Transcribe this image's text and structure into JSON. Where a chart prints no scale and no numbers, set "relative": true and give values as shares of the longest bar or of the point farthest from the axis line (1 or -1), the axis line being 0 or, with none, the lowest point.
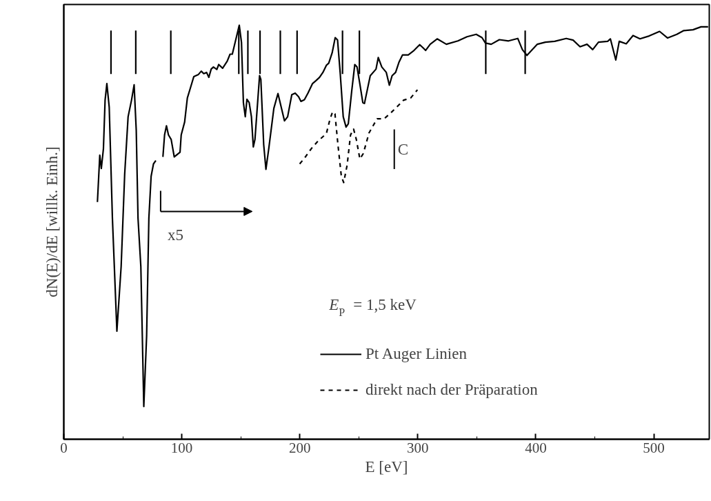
{
  "chart_data": {
    "type": "line",
    "relative": true,
    "xlabel": "E [eV]",
    "ylabel": "dN(E)/dE [willk. Einh.]",
    "legend_title": "E$_{P}$ = 1,5 keV",
    "xlim": [
      0,
      547
    ],
    "xticks": [
      0,
      100,
      200,
      300,
      400,
      500
    ],
    "grid": false,
    "legend": "bottom right",
    "series": [
      {
        "name": "Pt Auger Linien",
        "color": "#000000",
        "line_style": "solid",
        "x": [
          28.5,
          30.5,
          31.8,
          33.6,
          35,
          36.5,
          38.5,
          41.2,
          45,
          48.6,
          51.6,
          54.5,
          57.4,
          59.6,
          61.4,
          62.9,
          65.3,
          67.8,
          70.2,
          72.1,
          74,
          76,
          78,
          81,
          84,
          85.4,
          87,
          88.7,
          91,
          93.6,
          98.5,
          99.5,
          102.4,
          104.7,
          108.3,
          110.2,
          114.1,
          116.5,
          118.6,
          121,
          122.9,
          124.9,
          126.8,
          129.7,
          131.3,
          134.6,
          138.5,
          140.9,
          142.8,
          145.4,
          148.7,
          150.6,
          152.2,
          153.8,
          155.2,
          157.1,
          159,
          160.6,
          162,
          165.9,
          167,
          169.4,
          171.3,
          173.7,
          178,
          181.5,
          187,
          189.7,
          193.2,
          196.1,
          199,
          201,
          203.9,
          206.9,
          210.8,
          213.7,
          216.7,
          219.6,
          222.5,
          224.5,
          227.4,
          230,
          232,
          234.2,
          236.8,
          239.2,
          241.1,
          244,
          246.6,
          248.5,
          250.9,
          253.4,
          254.8,
          259.7,
          264.6,
          266.5,
          269.5,
          273.3,
          275.9,
          278.2,
          281.2,
          284.1,
          287,
          291.9,
          296.8,
          301.6,
          304.6,
          306.6,
          310.5,
          316.4,
          324.2,
          334,
          341.7,
          349.5,
          354.4,
          357.3,
          362.2,
          369.1,
          376.9,
          384.7,
          388.6,
          392.5,
          396.4,
          401.3,
          408.1,
          416,
          425.8,
          431.6,
          437.5,
          443.4,
          448.2,
          453.1,
          460.9,
          463.2,
          467.8,
          470.7,
          476.6,
          482.4,
          488.3,
          496.1,
          504.9,
          511.7,
          519.5,
          525.4,
          533.2,
          540,
          546
        ],
        "values": [
          0.573,
          0.686,
          0.654,
          0.702,
          0.819,
          0.859,
          0.802,
          0.534,
          0.261,
          0.417,
          0.64,
          0.779,
          0.819,
          0.856,
          0.746,
          0.534,
          0.417,
          0.079,
          0.25,
          0.534,
          0.635,
          0.665,
          0.673,
          null,
          0.682,
          0.735,
          0.757,
          0.735,
          0.724,
          0.682,
          0.693,
          0.735,
          0.766,
          0.824,
          0.858,
          0.876,
          0.881,
          0.889,
          0.883,
          0.886,
          0.874,
          0.894,
          0.899,
          0.893,
          0.905,
          0.896,
          0.913,
          0.93,
          0.93,
          0.961,
          1,
          0.958,
          0.813,
          0.779,
          0.821,
          0.813,
          0.779,
          0.706,
          0.724,
          0.878,
          0.869,
          0.712,
          0.652,
          0.702,
          0.799,
          0.835,
          0.769,
          0.779,
          0.832,
          0.836,
          0.827,
          0.816,
          0.82,
          0.836,
          0.859,
          0.866,
          0.874,
          0.886,
          0.903,
          0.908,
          0.933,
          0.97,
          0.964,
          0.886,
          0.779,
          0.754,
          0.762,
          0.841,
          0.905,
          0.899,
          0.858,
          0.813,
          0.811,
          0.878,
          0.894,
          0.922,
          0.899,
          0.886,
          0.855,
          0.878,
          0.886,
          0.911,
          0.928,
          0.928,
          0.939,
          0.953,
          0.945,
          0.939,
          0.954,
          0.967,
          0.954,
          0.962,
          0.972,
          0.978,
          0.97,
          0.957,
          0.954,
          0.965,
          0.962,
          0.968,
          0.941,
          0.927,
          0.939,
          0.954,
          0.959,
          0.961,
          0.968,
          0.964,
          0.948,
          0.954,
          0.941,
          0.959,
          0.961,
          0.967,
          0.916,
          0.961,
          0.955,
          0.975,
          0.967,
          0.974,
          0.985,
          0.969,
          0.978,
          0.987,
          0.989,
          0.996,
          0.996
        ]
      },
      {
        "name": "direkt nach der Präparation",
        "color": "#000000",
        "line_style": "dashed",
        "x": [
          199.9,
          204,
          209.8,
          215.7,
          222.5,
          225.4,
          227.8,
          229.8,
          232.3,
          235.2,
          237.2,
          240.1,
          243,
          245.6,
          247.9,
          250.9,
          253.8,
          258.7,
          265.5,
          271.4,
          276.3,
          282.1,
          288,
          293.9,
          299.7
        ],
        "values": [
          0.665,
          0.679,
          0.702,
          0.721,
          0.738,
          0.771,
          0.791,
          0.786,
          0.712,
          0.635,
          0.62,
          0.662,
          0.735,
          0.749,
          0.724,
          0.677,
          0.69,
          0.74,
          0.774,
          0.774,
          0.786,
          0.802,
          0.819,
          0.824,
          0.844
        ]
      }
    ],
    "ref_lines": [
      {
        "axis": "x",
        "value": 40
      },
      {
        "axis": "x",
        "value": 61
      },
      {
        "axis": "x",
        "value": 90.7
      },
      {
        "axis": "x",
        "value": 148.3
      },
      {
        "axis": "x",
        "value": 156
      },
      {
        "axis": "x",
        "value": 166.3
      },
      {
        "axis": "x",
        "value": 183.5
      },
      {
        "axis": "x",
        "value": 197.7
      },
      {
        "axis": "x",
        "value": 236.2
      },
      {
        "axis": "x",
        "value": 250.5
      },
      {
        "axis": "x",
        "value": 357.6
      },
      {
        "axis": "x",
        "value": 391
      }
    ],
    "annotations": [
      "C",
      "x5"
    ]
  }
}
